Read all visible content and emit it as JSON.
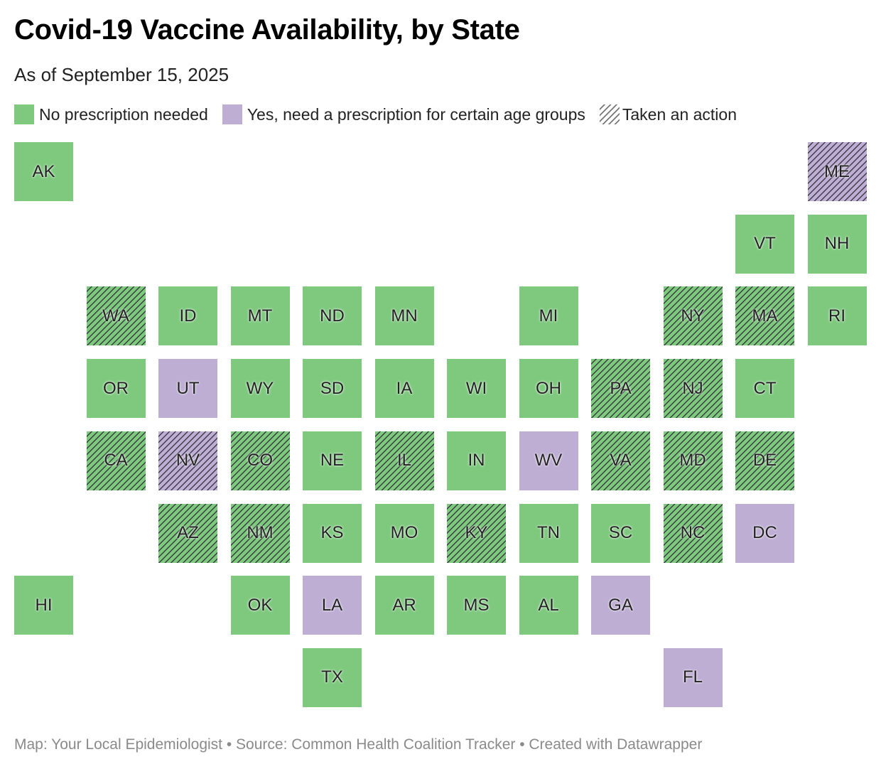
{
  "title": "Covid-19 Vaccine Availability, by State",
  "subtitle": "As of September 15, 2025",
  "legend": {
    "no_rx": "No prescription needed",
    "rx": "Yes, need a prescription for certain age groups",
    "action": "Taken an action"
  },
  "colors": {
    "no_rx": "#7fc97f",
    "rx": "#beaed4"
  },
  "states": [
    {
      "abbr": "AK",
      "status": "no_rx",
      "action": false
    },
    {
      "abbr": "ME",
      "status": "rx",
      "action": true
    },
    {
      "abbr": "VT",
      "status": "no_rx",
      "action": false
    },
    {
      "abbr": "NH",
      "status": "no_rx",
      "action": false
    },
    {
      "abbr": "WA",
      "status": "no_rx",
      "action": true
    },
    {
      "abbr": "ID",
      "status": "no_rx",
      "action": false
    },
    {
      "abbr": "MT",
      "status": "no_rx",
      "action": false
    },
    {
      "abbr": "ND",
      "status": "no_rx",
      "action": false
    },
    {
      "abbr": "MN",
      "status": "no_rx",
      "action": false
    },
    {
      "abbr": "MI",
      "status": "no_rx",
      "action": false
    },
    {
      "abbr": "NY",
      "status": "no_rx",
      "action": true
    },
    {
      "abbr": "MA",
      "status": "no_rx",
      "action": true
    },
    {
      "abbr": "RI",
      "status": "no_rx",
      "action": false
    },
    {
      "abbr": "OR",
      "status": "no_rx",
      "action": false
    },
    {
      "abbr": "UT",
      "status": "rx",
      "action": false
    },
    {
      "abbr": "WY",
      "status": "no_rx",
      "action": false
    },
    {
      "abbr": "SD",
      "status": "no_rx",
      "action": false
    },
    {
      "abbr": "IA",
      "status": "no_rx",
      "action": false
    },
    {
      "abbr": "WI",
      "status": "no_rx",
      "action": false
    },
    {
      "abbr": "OH",
      "status": "no_rx",
      "action": false
    },
    {
      "abbr": "PA",
      "status": "no_rx",
      "action": true
    },
    {
      "abbr": "NJ",
      "status": "no_rx",
      "action": true
    },
    {
      "abbr": "CT",
      "status": "no_rx",
      "action": false
    },
    {
      "abbr": "CA",
      "status": "no_rx",
      "action": true
    },
    {
      "abbr": "NV",
      "status": "rx",
      "action": true
    },
    {
      "abbr": "CO",
      "status": "no_rx",
      "action": true
    },
    {
      "abbr": "NE",
      "status": "no_rx",
      "action": false
    },
    {
      "abbr": "IL",
      "status": "no_rx",
      "action": true
    },
    {
      "abbr": "IN",
      "status": "no_rx",
      "action": false
    },
    {
      "abbr": "WV",
      "status": "rx",
      "action": false
    },
    {
      "abbr": "VA",
      "status": "no_rx",
      "action": true
    },
    {
      "abbr": "MD",
      "status": "no_rx",
      "action": true
    },
    {
      "abbr": "DE",
      "status": "no_rx",
      "action": true
    },
    {
      "abbr": "AZ",
      "status": "no_rx",
      "action": true
    },
    {
      "abbr": "NM",
      "status": "no_rx",
      "action": true
    },
    {
      "abbr": "KS",
      "status": "no_rx",
      "action": false
    },
    {
      "abbr": "MO",
      "status": "no_rx",
      "action": false
    },
    {
      "abbr": "KY",
      "status": "no_rx",
      "action": true
    },
    {
      "abbr": "TN",
      "status": "no_rx",
      "action": false
    },
    {
      "abbr": "SC",
      "status": "no_rx",
      "action": false
    },
    {
      "abbr": "NC",
      "status": "no_rx",
      "action": true
    },
    {
      "abbr": "DC",
      "status": "rx",
      "action": false
    },
    {
      "abbr": "HI",
      "status": "no_rx",
      "action": false
    },
    {
      "abbr": "OK",
      "status": "no_rx",
      "action": false
    },
    {
      "abbr": "LA",
      "status": "rx",
      "action": false
    },
    {
      "abbr": "AR",
      "status": "no_rx",
      "action": false
    },
    {
      "abbr": "MS",
      "status": "no_rx",
      "action": false
    },
    {
      "abbr": "AL",
      "status": "no_rx",
      "action": false
    },
    {
      "abbr": "GA",
      "status": "rx",
      "action": false
    },
    {
      "abbr": "TX",
      "status": "no_rx",
      "action": false
    },
    {
      "abbr": "FL",
      "status": "rx",
      "action": false
    }
  ],
  "footer": "Map: Your Local Epidemiologist • Source: Common Health Coalition Tracker • Created with Datawrapper"
}
